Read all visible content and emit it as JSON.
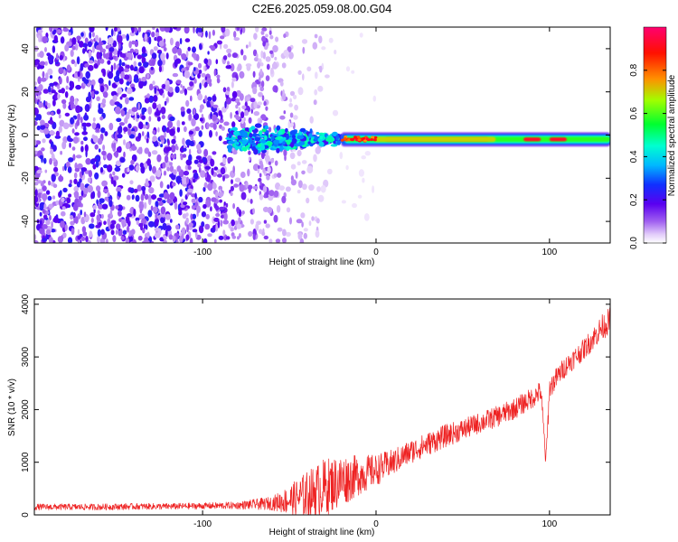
{
  "chart_data": [
    {
      "type": "heatmap",
      "title": "C2E6.2025.059.08.00.G04",
      "xlabel": "Height of straight line (km)",
      "ylabel": "Frequency (Hz)",
      "xlim": [
        -197,
        135
      ],
      "ylim": [
        -50,
        50
      ],
      "x_ticks": [
        -100,
        0,
        100
      ],
      "y_ticks": [
        -40,
        -20,
        0,
        20,
        40
      ],
      "colorbar": {
        "label": "Normalized spectral amplitude",
        "range": [
          0,
          1
        ],
        "ticks": [
          0.0,
          0.2,
          0.4,
          0.6,
          0.8
        ],
        "colormap": [
          "#ffffff",
          "#d8b8f8",
          "#8a2be2",
          "#6a00e8",
          "#2000ff",
          "#00b0ff",
          "#00ffd0",
          "#00ff00",
          "#d0ff00",
          "#ff8000",
          "#ff0000",
          "#ff0080"
        ]
      },
      "features": {
        "noise_region_x": [
          -197,
          -25
        ],
        "carrier_frequency_hz": -2,
        "strong_carrier_x": [
          -20,
          135
        ],
        "peak_amplitude_regions_x": [
          [
            5,
            65
          ],
          [
            85,
            95
          ],
          [
            100,
            110
          ]
        ]
      }
    },
    {
      "type": "line",
      "xlabel": "Height of straight line (km)",
      "ylabel": "SNR (10 * v/v)",
      "xlim": [
        -197,
        135
      ],
      "ylim": [
        0,
        4100
      ],
      "x_ticks": [
        -100,
        0,
        100
      ],
      "y_ticks": [
        0,
        1000,
        2000,
        3000,
        4000
      ],
      "color": "#ee2222",
      "series": [
        {
          "x": [
            -197,
            -180,
            -160,
            -140,
            -120,
            -100,
            -80,
            -60,
            -50,
            -40,
            -30,
            -20,
            -10,
            0,
            10,
            20,
            30,
            40,
            50,
            60,
            70,
            80,
            90,
            95,
            98,
            100,
            105,
            110,
            115,
            120,
            125,
            130,
            135
          ],
          "values": [
            150,
            150,
            150,
            160,
            160,
            170,
            180,
            220,
            280,
            380,
            520,
            650,
            750,
            850,
            1000,
            1200,
            1350,
            1500,
            1620,
            1750,
            1870,
            2020,
            2220,
            2350,
            1000,
            2400,
            2650,
            2850,
            3000,
            3150,
            3350,
            3550,
            3700
          ],
          "noise_amplitude": [
            60,
            60,
            60,
            60,
            60,
            60,
            70,
            130,
            280,
            450,
            550,
            500,
            380,
            300,
            250,
            230,
            220,
            220,
            200,
            200,
            200,
            200,
            200,
            200,
            200,
            200,
            200,
            200,
            200,
            200,
            220,
            250,
            250
          ]
        }
      ]
    }
  ]
}
